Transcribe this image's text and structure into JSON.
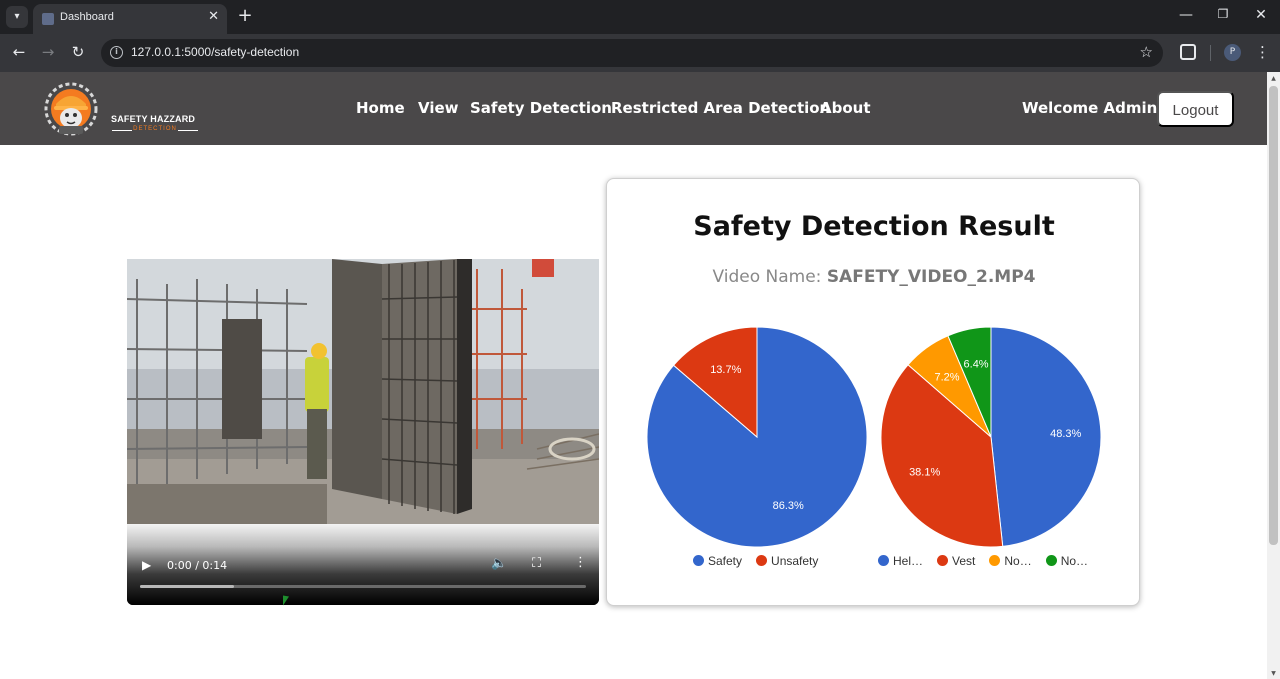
{
  "browser": {
    "tab_title": "Dashboard",
    "url": "127.0.0.1:5000/safety-detection",
    "profile_initial": "P"
  },
  "header": {
    "logo_name": "SAFETY HAZZARD",
    "logo_sub": "DETECTION",
    "nav": [
      "Home",
      "View",
      "Safety Detection",
      "Restricted Area Detection",
      "About"
    ],
    "welcome": "Welcome Admin",
    "logout": "Logout"
  },
  "video": {
    "time": "0:00 / 0:14",
    "buffered_fraction": 0.21
  },
  "result": {
    "title": "Safety Detection Result",
    "video_name_label": "Video Name:",
    "video_name": "SAFETY_VIDEO_2.MP4"
  },
  "chart_data": [
    {
      "type": "pie",
      "title": "",
      "labels": [
        "Safety",
        "Unsafety"
      ],
      "values": [
        86.3,
        13.7
      ],
      "colors": [
        "#3366cc",
        "#dc3912"
      ],
      "legend": "bottom"
    },
    {
      "type": "pie",
      "title": "",
      "labels": [
        "Hel…",
        "Vest",
        "No…",
        "No…"
      ],
      "values": [
        48.3,
        38.1,
        7.2,
        6.4
      ],
      "colors": [
        "#3366cc",
        "#dc3912",
        "#ff9900",
        "#109618"
      ],
      "legend": "bottom"
    }
  ]
}
